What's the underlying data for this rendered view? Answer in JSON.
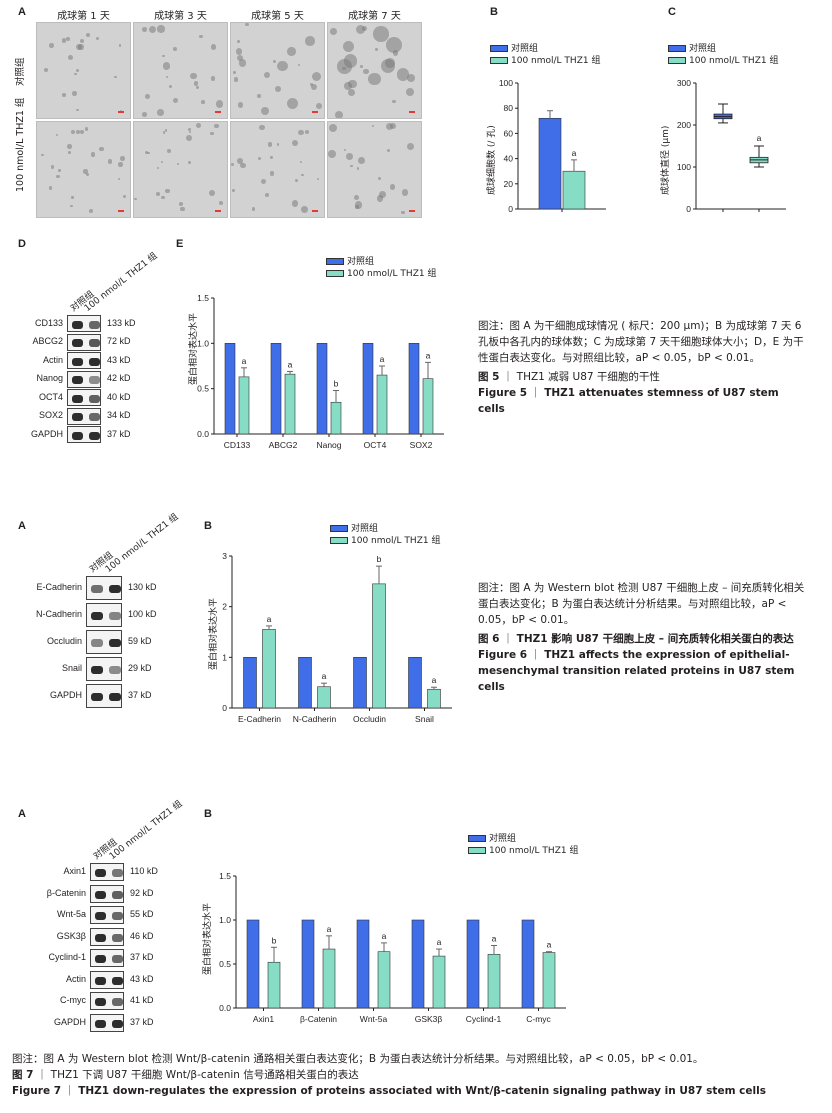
{
  "colors": {
    "control": "#3f6ee8",
    "treated": "#86dcc4"
  },
  "legend": {
    "control": "对照组",
    "treated": "100 nmol/L THZ1 组"
  },
  "fig5": {
    "panel_a": {
      "label": "A",
      "headers": [
        "成球第 1 天",
        "成球第 3 天",
        "成球第 5 天",
        "成球第 7 天"
      ],
      "rows": [
        "对照组",
        "100 nmol/L THZ1 组"
      ]
    },
    "panel_b": {
      "label": "B",
      "ylabel": "成球细胞数 (/ 孔)"
    },
    "panel_c": {
      "label": "C",
      "ylabel": "成球体直径 (μm)"
    },
    "panel_d": {
      "label": "D",
      "lanes": [
        "对照组",
        "100 nmol/L THZ1 组"
      ],
      "proteins": [
        {
          "name": "CD133",
          "kd": "133 kD"
        },
        {
          "name": "ABCG2",
          "kd": "72 kD"
        },
        {
          "name": "Actin",
          "kd": "43 kD"
        },
        {
          "name": "Nanog",
          "kd": "42 kD"
        },
        {
          "name": "OCT4",
          "kd": "40 kD"
        },
        {
          "name": "SOX2",
          "kd": "34 kD"
        },
        {
          "name": "GAPDH",
          "kd": "37 kD"
        }
      ]
    },
    "panel_e": {
      "label": "E",
      "ylabel": "蛋白相对表达水平"
    },
    "caption": {
      "note_prefix": "图注：",
      "note": "图 A 为干细胞成球情况 ( 标尺：200 μm)；B 为成球第 7 天 6 孔板中各孔内的球体数；C 为成球第 7 天干细胞球体大小；D，E 为干性蛋白表达变化。与对照组比较，aP < 0.05，bP < 0.01。",
      "title_cn_num": "图 5",
      "title_cn": "THZ1 减弱 U87 干细胞的干性",
      "title_en_num": "Figure 5",
      "title_en": "THZ1 attenuates stemness of U87 stem cells"
    }
  },
  "fig6": {
    "panel_a": {
      "label": "A",
      "lanes": [
        "对照组",
        "100 nmol/L THZ1 组"
      ],
      "proteins": [
        {
          "name": "E-Cadherin",
          "kd": "130 kD"
        },
        {
          "name": "N-Cadherin",
          "kd": "100 kD"
        },
        {
          "name": "Occludin",
          "kd": "59 kD"
        },
        {
          "name": "Snail",
          "kd": "29 kD"
        },
        {
          "name": "GAPDH",
          "kd": "37 kD"
        }
      ]
    },
    "panel_b": {
      "label": "B",
      "ylabel": "蛋白相对表达水平"
    },
    "caption": {
      "note_prefix": "图注：",
      "note": "图 A 为 Western blot 检测 U87 干细胞上皮 – 间充质转化相关蛋白表达变化；B 为蛋白表达统计分析结果。与对照组比较，aP < 0.05，bP < 0.01。",
      "title_cn_num": "图 6",
      "title_cn": "THZ1 影响 U87 干细胞上皮 – 间充质转化相关蛋白的表达",
      "title_en_num": "Figure 6",
      "title_en": "THZ1 affects the expression of epithelial-mesenchymal transition related proteins in U87 stem cells"
    }
  },
  "fig7": {
    "panel_a": {
      "label": "A",
      "lanes": [
        "对照组",
        "100 nmol/L THZ1 组"
      ],
      "proteins": [
        {
          "name": "Axin1",
          "kd": "110 kD"
        },
        {
          "name": "β-Catenin",
          "kd": "92 kD"
        },
        {
          "name": "Wnt-5a",
          "kd": "55 kD"
        },
        {
          "name": "GSK3β",
          "kd": "46 kD"
        },
        {
          "name": "Cyclind-1",
          "kd": "37 kD"
        },
        {
          "name": "Actin",
          "kd": "43 kD"
        },
        {
          "name": "C-myc",
          "kd": "41 kD"
        },
        {
          "name": "GAPDH",
          "kd": "37 kD"
        }
      ]
    },
    "panel_b": {
      "label": "B",
      "ylabel": "蛋白相对表达水平"
    },
    "caption": {
      "note_prefix": "图注：",
      "note": "图 A 为 Western blot 检测 Wnt/β-catenin 通路相关蛋白表达变化；B 为蛋白表达统计分析结果。与对照组比较，aP < 0.05，bP < 0.01。",
      "title_cn_num": "图 7",
      "title_cn": "THZ1 下调 U87 干细胞 Wnt/β-catenin 信号通路相关蛋白的表达",
      "title_en_num": "Figure 7",
      "title_en": "THZ1 down-regulates the expression of proteins associated with Wnt/β-catenin signaling pathway in U87 stem cells"
    }
  },
  "chart_data": [
    {
      "id": "fig5b",
      "type": "bar",
      "categories": [
        ""
      ],
      "series": [
        {
          "name": "对照组",
          "values": [
            72
          ],
          "errors": [
            6
          ]
        },
        {
          "name": "100 nmol/L THZ1 组",
          "values": [
            30
          ],
          "errors": [
            9
          ],
          "sig": [
            "a"
          ]
        }
      ],
      "ylim": [
        0,
        100
      ],
      "yticks": [
        0,
        20,
        40,
        60,
        80,
        100
      ],
      "ylabel": "成球细胞数 (/ 孔)"
    },
    {
      "id": "fig5c",
      "type": "box",
      "categories": [
        ""
      ],
      "series": [
        {
          "name": "对照组",
          "box": {
            "min": 205,
            "q1": 215,
            "median": 220,
            "q3": 226,
            "max": 250
          }
        },
        {
          "name": "100 nmol/L THZ1 组",
          "box": {
            "min": 100,
            "q1": 110,
            "median": 117,
            "q3": 123,
            "max": 150
          },
          "sig": [
            "a"
          ]
        }
      ],
      "ylim": [
        0,
        300
      ],
      "yticks": [
        0,
        100,
        200,
        300
      ],
      "ylabel": "成球体直径 (μm)"
    },
    {
      "id": "fig5e",
      "type": "bar",
      "categories": [
        "CD133",
        "ABCG2",
        "Nanog",
        "OCT4",
        "SOX2"
      ],
      "series": [
        {
          "name": "对照组",
          "values": [
            1,
            1,
            1,
            1,
            1
          ],
          "errors": [
            0,
            0,
            0,
            0,
            0
          ]
        },
        {
          "name": "100 nmol/L THZ1 组",
          "values": [
            0.63,
            0.66,
            0.35,
            0.65,
            0.61
          ],
          "errors": [
            0.1,
            0.03,
            0.13,
            0.1,
            0.18
          ],
          "sig": [
            "a",
            "a",
            "b",
            "a",
            "a"
          ]
        }
      ],
      "ylim": [
        0,
        1.5
      ],
      "yticks": [
        0,
        0.5,
        1.0,
        1.5
      ],
      "ylabel": "蛋白相对表达水平"
    },
    {
      "id": "fig6b",
      "type": "bar",
      "categories": [
        "E-Cadherin",
        "N-Cadherin",
        "Occludin",
        "Snail"
      ],
      "series": [
        {
          "name": "对照组",
          "values": [
            1,
            1,
            1,
            1
          ],
          "errors": [
            0,
            0,
            0,
            0
          ]
        },
        {
          "name": "100 nmol/L THZ1 组",
          "values": [
            1.55,
            0.42,
            2.45,
            0.37
          ],
          "errors": [
            0.07,
            0.07,
            0.35,
            0.04
          ],
          "sig": [
            "a",
            "a",
            "b",
            "a"
          ]
        }
      ],
      "ylim": [
        0,
        3
      ],
      "yticks": [
        0,
        1,
        2,
        3
      ],
      "ylabel": "蛋白相对表达水平"
    },
    {
      "id": "fig7b",
      "type": "bar",
      "categories": [
        "Axin1",
        "β-Catenin",
        "Wnt-5a",
        "GSK3β",
        "Cyclind-1",
        "C-myc"
      ],
      "series": [
        {
          "name": "对照组",
          "values": [
            1,
            1,
            1,
            1,
            1,
            1
          ],
          "errors": [
            0,
            0,
            0,
            0,
            0,
            0
          ]
        },
        {
          "name": "100 nmol/L THZ1 组",
          "values": [
            0.52,
            0.67,
            0.64,
            0.59,
            0.61,
            0.63
          ],
          "errors": [
            0.17,
            0.15,
            0.1,
            0.08,
            0.1,
            0.01
          ],
          "sig": [
            "b",
            "a",
            "a",
            "a",
            "a",
            "a"
          ]
        }
      ],
      "ylim": [
        0,
        1.5
      ],
      "yticks": [
        0,
        0.5,
        1.0,
        1.5
      ],
      "ylabel": "蛋白相对表达水平"
    }
  ]
}
